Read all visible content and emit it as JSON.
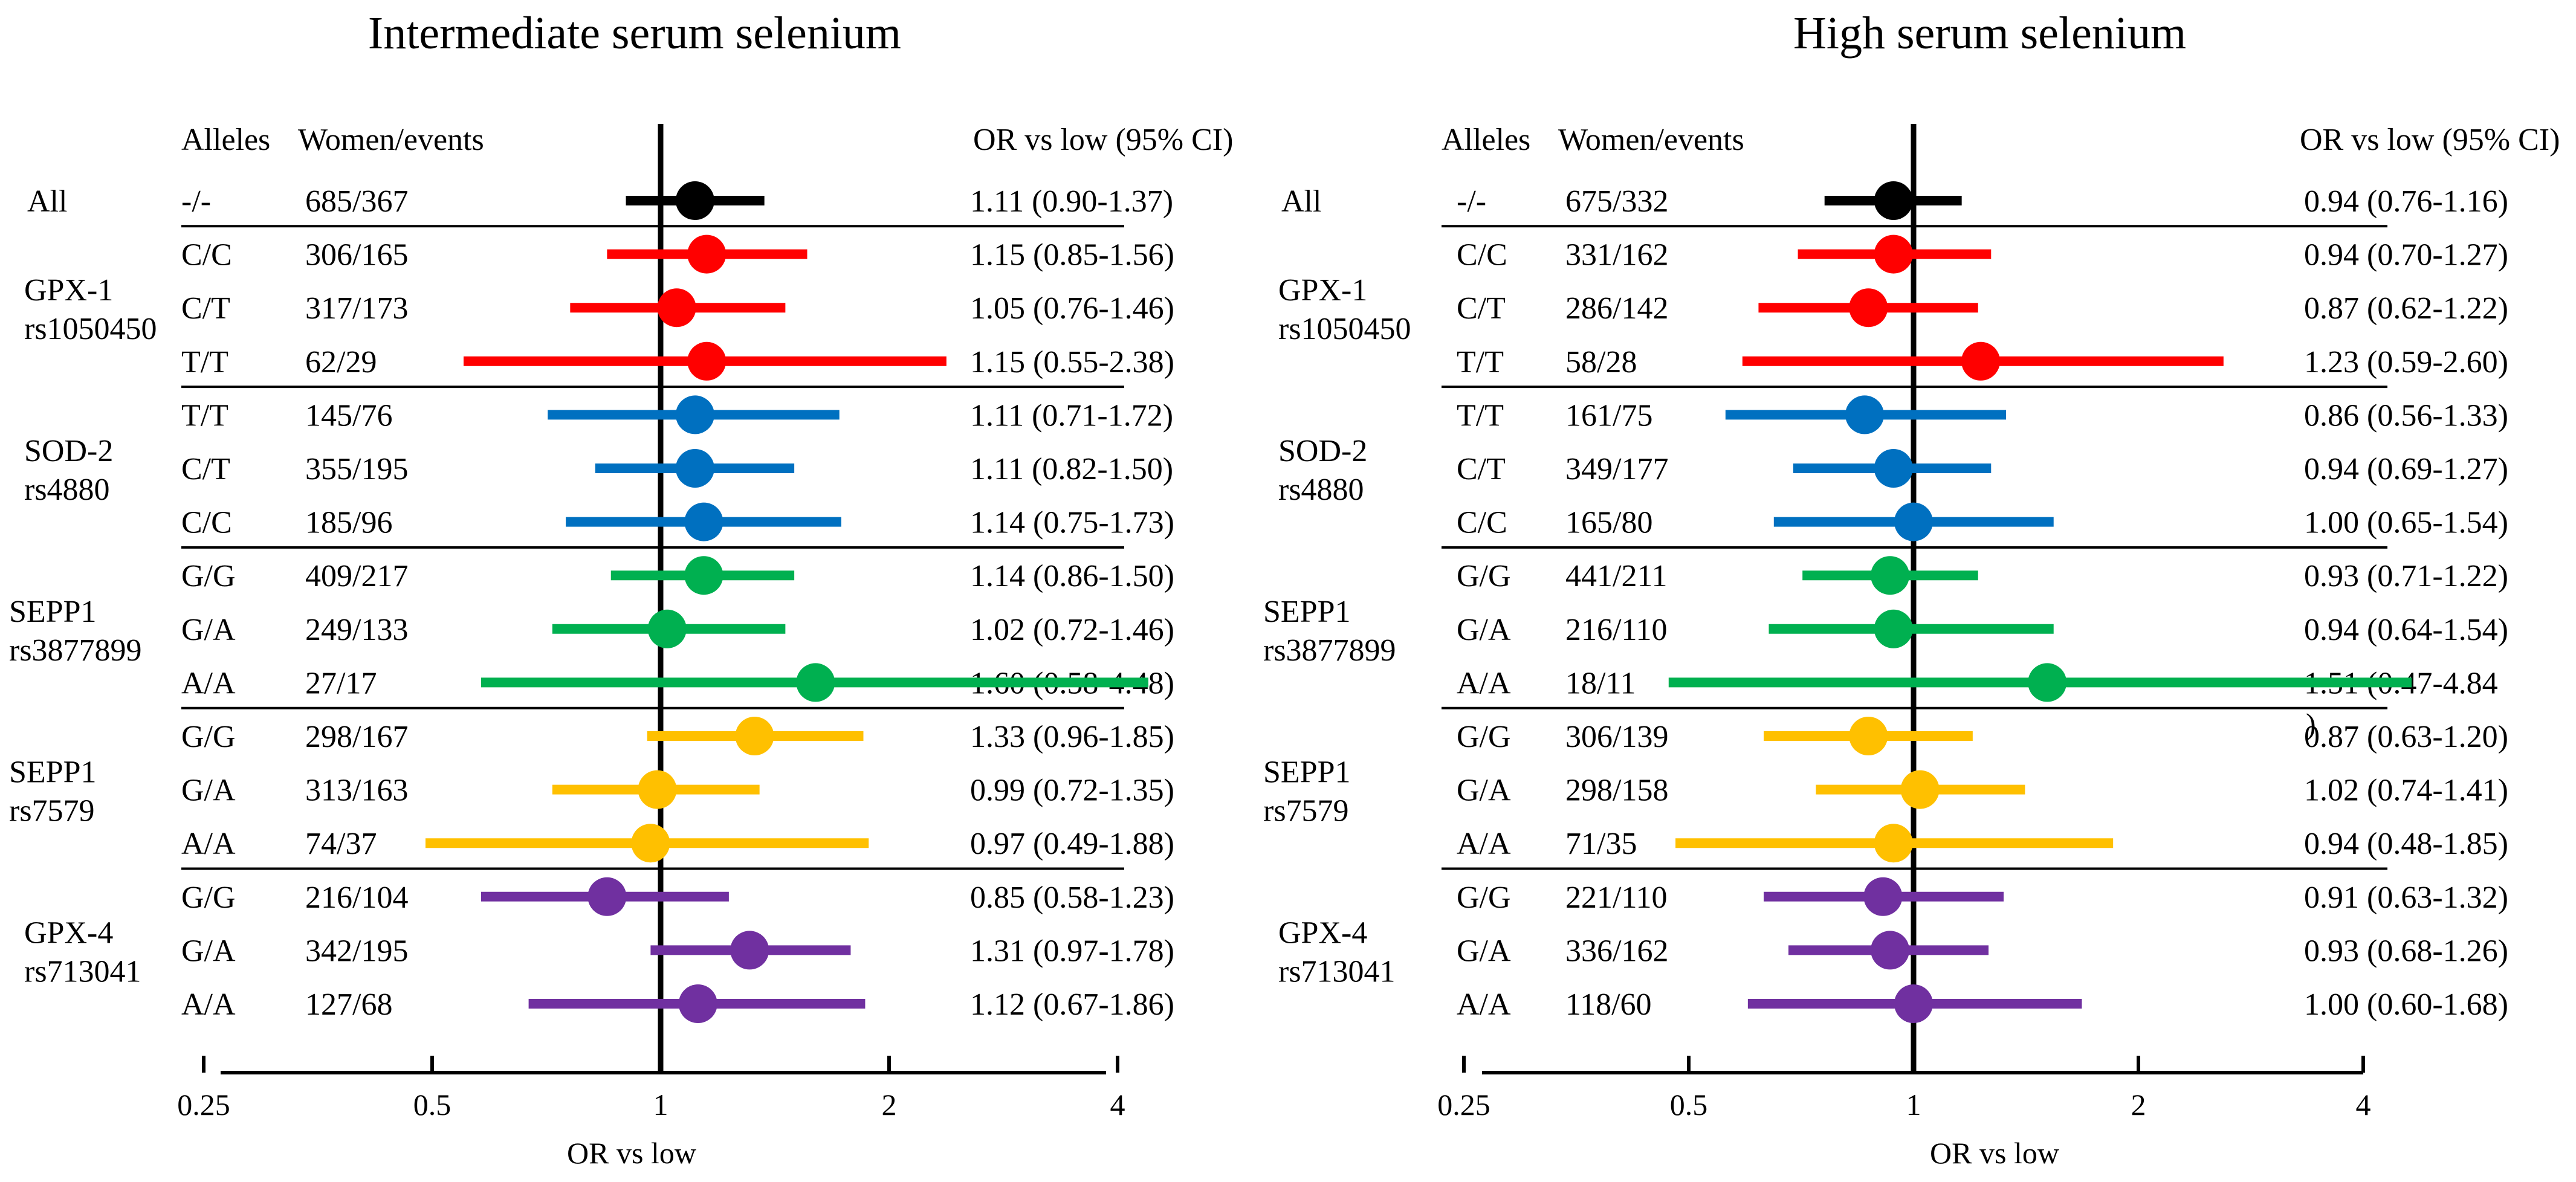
{
  "panels": [
    {
      "title": "Intermediate serum selenium",
      "headers": {
        "alleles": "Alleles",
        "women_events": "Women/events",
        "or_ci": "OR vs low (95% CI)"
      },
      "xlabel": "OR vs low",
      "groups": [
        {
          "label": [
            "All"
          ],
          "rows": [
            {
              "allele": "-/-",
              "we": "685/367",
              "ci_text": "1.11 (0.90-1.37)"
            }
          ]
        },
        {
          "label": [
            "GPX-1",
            "rs1050450"
          ],
          "rows": [
            {
              "allele": "C/C",
              "we": "306/165",
              "ci_text": "1.15 (0.85-1.56)"
            },
            {
              "allele": "C/T",
              "we": "317/173",
              "ci_text": "1.05 (0.76-1.46)"
            },
            {
              "allele": "T/T",
              "we": "62/29",
              "ci_text": "1.15 (0.55-2.38)"
            }
          ]
        },
        {
          "label": [
            "SOD-2",
            "rs4880"
          ],
          "rows": [
            {
              "allele": "T/T",
              "we": "145/76",
              "ci_text": "1.11 (0.71-1.72)"
            },
            {
              "allele": "C/T",
              "we": "355/195",
              "ci_text": "1.11 (0.82-1.50)"
            },
            {
              "allele": "C/C",
              "we": "185/96",
              "ci_text": "1.14 (0.75-1.73)"
            }
          ]
        },
        {
          "label": [
            "SEPP1",
            "rs3877899"
          ],
          "rows": [
            {
              "allele": "G/G",
              "we": "409/217",
              "ci_text": "1.14 (0.86-1.50)"
            },
            {
              "allele": "G/A",
              "we": "249/133",
              "ci_text": "1.02 (0.72-1.46)"
            },
            {
              "allele": "A/A",
              "we": "27/17",
              "ci_text": "1.60 (0.58-4.48)"
            }
          ]
        },
        {
          "label": [
            "SEPP1",
            "rs7579"
          ],
          "rows": [
            {
              "allele": "G/G",
              "we": "298/167",
              "ci_text": "1.33 (0.96-1.85)"
            },
            {
              "allele": "G/A",
              "we": "313/163",
              "ci_text": "0.99 (0.72-1.35)"
            },
            {
              "allele": "A/A",
              "we": "74/37",
              "ci_text": "0.97 (0.49-1.88)"
            }
          ]
        },
        {
          "label": [
            "GPX-4",
            "rs713041"
          ],
          "rows": [
            {
              "allele": "G/G",
              "we": "216/104",
              "ci_text": "0.85 (0.58-1.23)"
            },
            {
              "allele": "G/A",
              "we": "342/195",
              "ci_text": "1.31 (0.97-1.78)"
            },
            {
              "allele": "A/A",
              "we": "127/68",
              "ci_text": "1.12 (0.67-1.86)"
            }
          ]
        }
      ]
    },
    {
      "title": "High serum selenium",
      "headers": {
        "alleles": "Alleles",
        "women_events": "Women/events",
        "or_ci": "OR vs low (95% CI)"
      },
      "xlabel": "OR vs low",
      "groups": [
        {
          "label": [
            "All"
          ],
          "rows": [
            {
              "allele": "-/-",
              "we": "675/332",
              "ci_text": "0.94 (0.76-1.16)"
            }
          ]
        },
        {
          "label": [
            "GPX-1",
            "rs1050450"
          ],
          "rows": [
            {
              "allele": "C/C",
              "we": "331/162",
              "ci_text": "0.94 (0.70-1.27)"
            },
            {
              "allele": "C/T",
              "we": "286/142",
              "ci_text": "0.87 (0.62-1.22)"
            },
            {
              "allele": "T/T",
              "we": "58/28",
              "ci_text": "1.23 (0.59-2.60)"
            }
          ]
        },
        {
          "label": [
            "SOD-2",
            "rs4880"
          ],
          "rows": [
            {
              "allele": "T/T",
              "we": "161/75",
              "ci_text": "0.86 (0.56-1.33)"
            },
            {
              "allele": "C/T",
              "we": "349/177",
              "ci_text": "0.94 (0.69-1.27)"
            },
            {
              "allele": "C/C",
              "we": "165/80",
              "ci_text": "1.00 (0.65-1.54)"
            }
          ]
        },
        {
          "label": [
            "SEPP1",
            "rs3877899"
          ],
          "rows": [
            {
              "allele": "G/G",
              "we": "441/211",
              "ci_text": "0.93 (0.71-1.22)"
            },
            {
              "allele": "G/A",
              "we": "216/110",
              "ci_text": "0.94 (0.64-1.54)"
            },
            {
              "allele": "A/A",
              "we": "18/11",
              "ci_text": "1.51 (0.47-4.84"
            }
          ]
        },
        {
          "label": [
            "SEPP1",
            "rs7579"
          ],
          "rows": [
            {
              "allele": "G/G",
              "we": "306/139",
              "ci_text": "0.87 (0.63-1.20)"
            },
            {
              "allele": "G/A",
              "we": "298/158",
              "ci_text": "1.02 (0.74-1.41)"
            },
            {
              "allele": "A/A",
              "we": "71/35",
              "ci_text": "0.94 (0.48-1.85)"
            }
          ]
        },
        {
          "label": [
            "GPX-4",
            "rs713041"
          ],
          "rows": [
            {
              "allele": "G/G",
              "we": "221/110",
              "ci_text": "0.91 (0.63-1.32)"
            },
            {
              "allele": "G/A",
              "we": "336/162",
              "ci_text": "0.93 (0.68-1.26)"
            },
            {
              "allele": "A/A",
              "we": "118/60",
              "ci_text": "1.00 (0.60-1.68)"
            }
          ]
        }
      ]
    }
  ],
  "colors": [
    "#000000",
    "#ff0000",
    "#0070c0",
    "#00b050",
    "#ffc000",
    "#7030a0"
  ],
  "chart_data": [
    {
      "type": "forest",
      "title": "Intermediate serum selenium",
      "xlabel": "OR vs low",
      "xscale": "log2",
      "xlim": [
        0.25,
        4
      ],
      "xticks": [
        "0.25",
        "0.5",
        "1",
        "2",
        "4"
      ],
      "reference_line": 1,
      "series": [
        {
          "name": "All",
          "labels": [
            "-/-"
          ],
          "or": [
            1.11
          ],
          "lo": [
            0.9
          ],
          "hi": [
            1.37
          ]
        },
        {
          "name": "GPX-1 rs1050450",
          "labels": [
            "C/C",
            "C/T",
            "T/T"
          ],
          "or": [
            1.15,
            1.05,
            1.15
          ],
          "lo": [
            0.85,
            0.76,
            0.55
          ],
          "hi": [
            1.56,
            1.46,
            2.38
          ]
        },
        {
          "name": "SOD-2 rs4880",
          "labels": [
            "T/T",
            "C/T",
            "C/C"
          ],
          "or": [
            1.11,
            1.11,
            1.14
          ],
          "lo": [
            0.71,
            0.82,
            0.75
          ],
          "hi": [
            1.72,
            1.5,
            1.73
          ]
        },
        {
          "name": "SEPP1 rs3877899",
          "labels": [
            "G/G",
            "G/A",
            "A/A"
          ],
          "or": [
            1.14,
            1.02,
            1.6
          ],
          "lo": [
            0.86,
            0.72,
            0.58
          ],
          "hi": [
            1.5,
            1.46,
            4.48
          ]
        },
        {
          "name": "SEPP1 rs7579",
          "labels": [
            "G/G",
            "G/A",
            "A/A"
          ],
          "or": [
            1.33,
            0.99,
            0.97
          ],
          "lo": [
            0.96,
            0.72,
            0.49
          ],
          "hi": [
            1.85,
            1.35,
            1.88
          ]
        },
        {
          "name": "GPX-4 rs713041",
          "labels": [
            "G/G",
            "G/A",
            "A/A"
          ],
          "or": [
            0.85,
            1.31,
            1.12
          ],
          "lo": [
            0.58,
            0.97,
            0.67
          ],
          "hi": [
            1.23,
            1.78,
            1.86
          ]
        }
      ]
    },
    {
      "type": "forest",
      "title": "High serum selenium",
      "xlabel": "OR vs low",
      "xscale": "log2",
      "xlim": [
        0.25,
        4
      ],
      "xticks": [
        "0.25",
        "0.5",
        "1",
        "2",
        "4"
      ],
      "reference_line": 1,
      "series": [
        {
          "name": "All",
          "labels": [
            "-/-"
          ],
          "or": [
            0.94
          ],
          "lo": [
            0.76
          ],
          "hi": [
            1.16
          ]
        },
        {
          "name": "GPX-1 rs1050450",
          "labels": [
            "C/C",
            "C/T",
            "T/T"
          ],
          "or": [
            0.94,
            0.87,
            1.23
          ],
          "lo": [
            0.7,
            0.62,
            0.59
          ],
          "hi": [
            1.27,
            1.22,
            2.6
          ]
        },
        {
          "name": "SOD-2 rs4880",
          "labels": [
            "T/T",
            "C/T",
            "C/C"
          ],
          "or": [
            0.86,
            0.94,
            1.0
          ],
          "lo": [
            0.56,
            0.69,
            0.65
          ],
          "hi": [
            1.33,
            1.27,
            1.54
          ]
        },
        {
          "name": "SEPP1 rs3877899",
          "labels": [
            "G/G",
            "G/A",
            "A/A"
          ],
          "or": [
            0.93,
            0.94,
            1.51
          ],
          "lo": [
            0.71,
            0.64,
            0.47
          ],
          "hi": [
            1.22,
            1.54,
            4.84
          ]
        },
        {
          "name": "SEPP1 rs7579",
          "labels": [
            "G/G",
            "G/A",
            "A/A"
          ],
          "or": [
            0.87,
            1.02,
            0.94
          ],
          "lo": [
            0.63,
            0.74,
            0.48
          ],
          "hi": [
            1.2,
            1.41,
            1.85
          ]
        },
        {
          "name": "GPX-4 rs713041",
          "labels": [
            "G/G",
            "G/A",
            "A/A"
          ],
          "or": [
            0.91,
            0.93,
            1.0
          ],
          "lo": [
            0.63,
            0.68,
            0.6
          ],
          "hi": [
            1.32,
            1.26,
            1.68
          ]
        }
      ]
    }
  ]
}
